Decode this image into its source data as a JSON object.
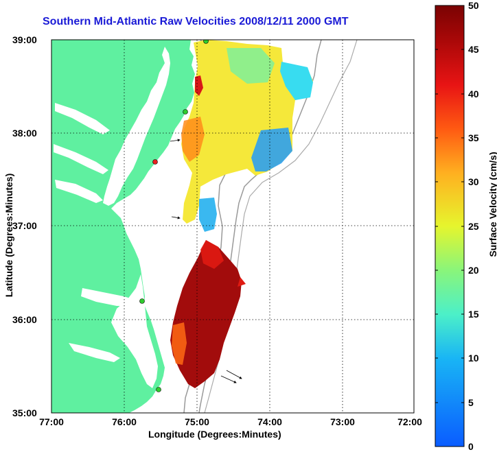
{
  "title": "Southern Mid-Atlantic Raw Velocities 2008/12/11 2000 GMT",
  "xlabel": "Longitude (Degrees:Minutes)",
  "ylabel": "Latitude (Degrees:Minutes)",
  "colorbar_label": "Surface Velocity (cm/s)",
  "x_ticks": [
    "77:00",
    "76:00",
    "75:00",
    "74:00",
    "73:00",
    "72:00"
  ],
  "y_ticks": [
    "39:00",
    "38:00",
    "37:00",
    "36:00",
    "35:00"
  ],
  "colorbar_ticks": [
    "50",
    "45",
    "40",
    "35",
    "30",
    "25",
    "20",
    "15",
    "10",
    "5",
    "0"
  ],
  "colors": {
    "land": "#5ff0a0",
    "title": "#1a1ad6",
    "station": "#2ecc2e"
  },
  "chart_data": {
    "type": "heatmap",
    "x_range": [
      -77,
      -72
    ],
    "y_range": [
      35,
      39
    ],
    "value_range": [
      0,
      50
    ],
    "units": "cm/s",
    "grid": true
  }
}
